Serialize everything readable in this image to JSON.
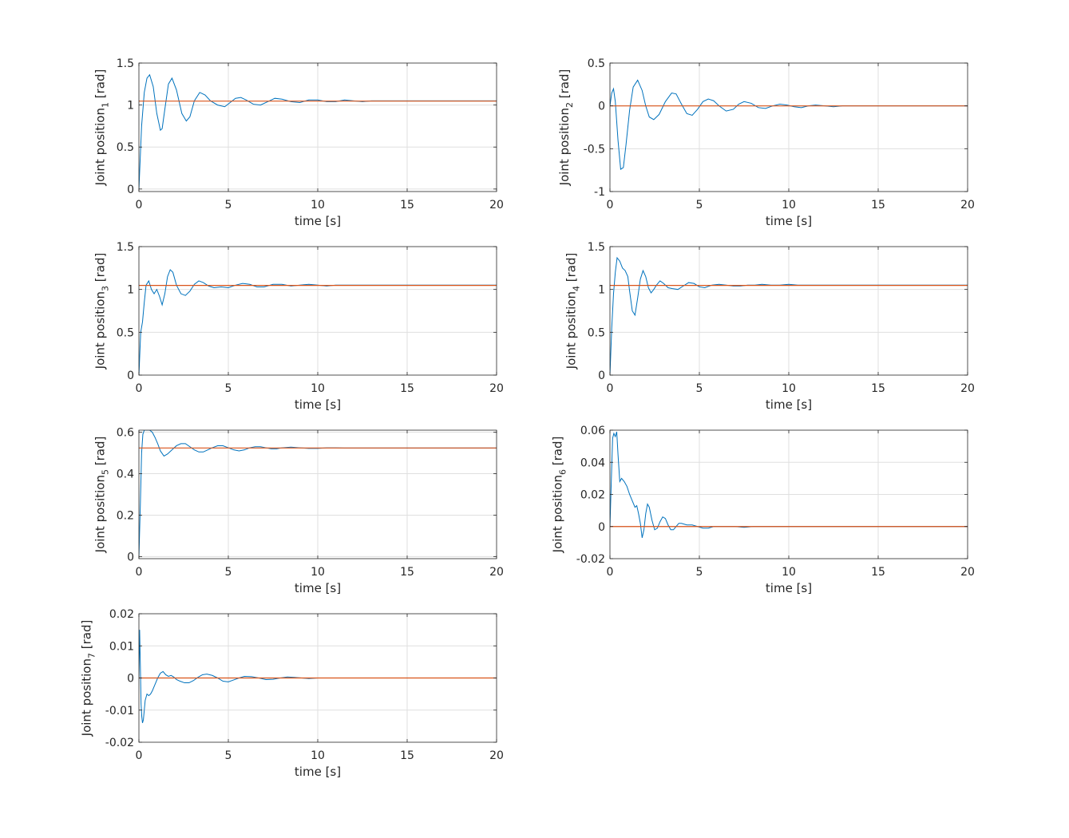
{
  "chart_data": [
    {
      "type": "line",
      "ylabel": "Joint position",
      "ylabel_sub": "1",
      "ylabel_unit": " [rad]",
      "xlabel": "time [s]",
      "xlim": [
        0,
        20
      ],
      "ylim": [
        -0.03,
        1.5
      ],
      "xticks": [
        0,
        5,
        10,
        15,
        20
      ],
      "yticks": [
        0,
        0.5,
        1,
        1.5
      ],
      "ytick_labels": [
        "0",
        "0.5",
        "1",
        "1.5"
      ],
      "grid": true,
      "reference": 1.047,
      "series": [
        {
          "color": "#0072BD",
          "x": [
            0,
            0.07,
            0.15,
            0.3,
            0.45,
            0.6,
            0.8,
            1.0,
            1.2,
            1.3,
            1.45,
            1.65,
            1.85,
            2.1,
            2.4,
            2.65,
            2.85,
            3.1,
            3.4,
            3.7,
            4.0,
            4.4,
            4.8,
            5.1,
            5.4,
            5.7,
            6.0,
            6.4,
            6.8,
            7.2,
            7.6,
            8.0,
            8.5,
            9.0,
            9.5,
            10.0,
            10.5,
            11.0,
            11.5,
            12.0,
            12.5,
            13.0,
            13.5,
            14.0,
            15.0,
            16.0,
            17.0,
            18.0,
            19.0,
            20.0
          ],
          "y": [
            0.0,
            0.35,
            0.75,
            1.15,
            1.32,
            1.36,
            1.22,
            0.9,
            0.7,
            0.72,
            0.95,
            1.25,
            1.32,
            1.18,
            0.9,
            0.81,
            0.86,
            1.05,
            1.15,
            1.12,
            1.05,
            1.0,
            0.98,
            1.03,
            1.08,
            1.09,
            1.06,
            1.01,
            1.0,
            1.04,
            1.08,
            1.07,
            1.04,
            1.03,
            1.06,
            1.06,
            1.04,
            1.04,
            1.06,
            1.05,
            1.04,
            1.05,
            1.05,
            1.05,
            1.05,
            1.05,
            1.05,
            1.05,
            1.05,
            1.05
          ]
        },
        {
          "color": "#D95319",
          "x": [
            0,
            20
          ],
          "y": [
            1.047,
            1.047
          ]
        }
      ]
    },
    {
      "type": "line",
      "ylabel": "Joint position",
      "ylabel_sub": "2",
      "ylabel_unit": " [rad]",
      "xlabel": "time [s]",
      "xlim": [
        0,
        20
      ],
      "ylim": [
        -1,
        0.5
      ],
      "xticks": [
        0,
        5,
        10,
        15,
        20
      ],
      "yticks": [
        -1,
        -0.5,
        0,
        0.5
      ],
      "ytick_labels": [
        "-1",
        "-0.5",
        "0",
        "0.5"
      ],
      "grid": true,
      "reference": 0,
      "series": [
        {
          "color": "#0072BD",
          "x": [
            0,
            0.1,
            0.2,
            0.3,
            0.45,
            0.6,
            0.75,
            0.9,
            1.1,
            1.3,
            1.55,
            1.8,
            2.0,
            2.2,
            2.45,
            2.75,
            3.1,
            3.45,
            3.7,
            4.0,
            4.3,
            4.6,
            4.9,
            5.2,
            5.5,
            5.8,
            6.1,
            6.5,
            6.9,
            7.2,
            7.5,
            7.9,
            8.3,
            8.7,
            9.1,
            9.5,
            9.9,
            10.3,
            10.7,
            11.1,
            11.5,
            12.0,
            12.5,
            13.0,
            14.0,
            15.0,
            16.0,
            17.0,
            18.0,
            19.0,
            20.0
          ],
          "y": [
            0.0,
            0.15,
            0.2,
            0.05,
            -0.4,
            -0.74,
            -0.72,
            -0.45,
            -0.05,
            0.22,
            0.3,
            0.18,
            0.0,
            -0.13,
            -0.16,
            -0.1,
            0.05,
            0.15,
            0.14,
            0.02,
            -0.09,
            -0.11,
            -0.04,
            0.05,
            0.08,
            0.06,
            0.0,
            -0.06,
            -0.04,
            0.02,
            0.05,
            0.03,
            -0.02,
            -0.03,
            0.0,
            0.02,
            0.01,
            -0.01,
            -0.02,
            0.0,
            0.01,
            0.0,
            -0.01,
            0.0,
            0.0,
            0.0,
            0.0,
            0.0,
            0.0,
            0.0,
            0.0
          ]
        },
        {
          "color": "#D95319",
          "x": [
            0,
            20
          ],
          "y": [
            0,
            0
          ]
        }
      ]
    },
    {
      "type": "line",
      "ylabel": "Joint position",
      "ylabel_sub": "3",
      "ylabel_unit": " [rad]",
      "xlabel": "time [s]",
      "xlim": [
        0,
        20
      ],
      "ylim": [
        0,
        1.5
      ],
      "xticks": [
        0,
        5,
        10,
        15,
        20
      ],
      "yticks": [
        0,
        0.5,
        1,
        1.5
      ],
      "ytick_labels": [
        "0",
        "0.5",
        "1",
        "1.5"
      ],
      "grid": true,
      "reference": 1.047,
      "series": [
        {
          "color": "#0072BD",
          "x": [
            0,
            0.1,
            0.2,
            0.3,
            0.4,
            0.55,
            0.7,
            0.85,
            1.0,
            1.15,
            1.3,
            1.45,
            1.6,
            1.75,
            1.9,
            2.1,
            2.35,
            2.6,
            2.85,
            3.1,
            3.35,
            3.6,
            3.9,
            4.2,
            4.6,
            5.0,
            5.4,
            5.8,
            6.2,
            6.6,
            7.0,
            7.5,
            8.0,
            8.5,
            9.0,
            9.5,
            10.0,
            10.5,
            11.0,
            11.5,
            12.0,
            13.0,
            14.0,
            15.0,
            16.0,
            17.0,
            18.0,
            19.0,
            20.0
          ],
          "y": [
            0.0,
            0.5,
            0.62,
            0.85,
            1.05,
            1.1,
            1.0,
            0.95,
            1.0,
            0.92,
            0.82,
            0.95,
            1.15,
            1.23,
            1.2,
            1.05,
            0.95,
            0.93,
            0.98,
            1.06,
            1.1,
            1.08,
            1.04,
            1.02,
            1.03,
            1.02,
            1.05,
            1.07,
            1.06,
            1.03,
            1.03,
            1.06,
            1.06,
            1.04,
            1.05,
            1.06,
            1.05,
            1.04,
            1.05,
            1.05,
            1.05,
            1.05,
            1.05,
            1.05,
            1.05,
            1.05,
            1.05,
            1.05,
            1.05
          ]
        },
        {
          "color": "#D95319",
          "x": [
            0,
            20
          ],
          "y": [
            1.047,
            1.047
          ]
        }
      ]
    },
    {
      "type": "line",
      "ylabel": "Joint position",
      "ylabel_sub": "4",
      "ylabel_unit": " [rad]",
      "xlabel": "time [s]",
      "xlim": [
        0,
        20
      ],
      "ylim": [
        0,
        1.5
      ],
      "xticks": [
        0,
        5,
        10,
        15,
        20
      ],
      "yticks": [
        0,
        0.5,
        1,
        1.5
      ],
      "ytick_labels": [
        "0",
        "0.5",
        "1",
        "1.5"
      ],
      "grid": true,
      "reference": 1.047,
      "series": [
        {
          "color": "#0072BD",
          "x": [
            0,
            0.1,
            0.2,
            0.3,
            0.4,
            0.55,
            0.7,
            0.85,
            1.0,
            1.1,
            1.25,
            1.4,
            1.55,
            1.7,
            1.85,
            2.0,
            2.15,
            2.3,
            2.45,
            2.6,
            2.8,
            3.0,
            3.25,
            3.5,
            3.8,
            4.1,
            4.4,
            4.7,
            5.0,
            5.3,
            5.7,
            6.1,
            6.5,
            6.9,
            7.3,
            7.7,
            8.1,
            8.5,
            9.0,
            9.5,
            10.0,
            10.5,
            11.0,
            12.0,
            13.0,
            14.0,
            15.0,
            16.0,
            17.0,
            18.0,
            19.0,
            20.0
          ],
          "y": [
            0.0,
            0.55,
            0.95,
            1.2,
            1.37,
            1.33,
            1.25,
            1.22,
            1.15,
            0.98,
            0.75,
            0.7,
            0.9,
            1.12,
            1.22,
            1.15,
            1.02,
            0.96,
            1.0,
            1.05,
            1.1,
            1.07,
            1.02,
            1.01,
            1.0,
            1.04,
            1.08,
            1.07,
            1.03,
            1.02,
            1.05,
            1.06,
            1.05,
            1.04,
            1.04,
            1.05,
            1.05,
            1.06,
            1.05,
            1.05,
            1.06,
            1.05,
            1.05,
            1.05,
            1.05,
            1.05,
            1.05,
            1.05,
            1.05,
            1.05,
            1.05,
            1.05
          ]
        },
        {
          "color": "#D95319",
          "x": [
            0,
            20
          ],
          "y": [
            1.047,
            1.047
          ]
        }
      ]
    },
    {
      "type": "line",
      "ylabel": "Joint position",
      "ylabel_sub": "5",
      "ylabel_unit": " [rad]",
      "xlabel": "time [s]",
      "xlim": [
        0,
        20
      ],
      "ylim": [
        -0.01,
        0.61
      ],
      "xticks": [
        0,
        5,
        10,
        15,
        20
      ],
      "yticks": [
        0,
        0.2,
        0.4,
        0.6
      ],
      "ytick_labels": [
        "0",
        "0.2",
        "0.4",
        "0.6"
      ],
      "grid": true,
      "reference": 0.524,
      "series": [
        {
          "color": "#0072BD",
          "x": [
            0,
            0.08,
            0.15,
            0.22,
            0.3,
            0.45,
            0.6,
            0.75,
            0.9,
            1.05,
            1.2,
            1.4,
            1.6,
            1.85,
            2.1,
            2.35,
            2.6,
            2.85,
            3.1,
            3.35,
            3.6,
            3.85,
            4.1,
            4.4,
            4.7,
            5.0,
            5.3,
            5.6,
            5.9,
            6.2,
            6.5,
            6.8,
            7.1,
            7.4,
            7.7,
            8.0,
            8.5,
            9.0,
            9.5,
            10.0,
            10.5,
            11.0,
            11.5,
            12.0,
            13.0,
            14.0,
            15.0,
            16.0,
            17.0,
            18.0,
            19.0,
            20.0
          ],
          "y": [
            0.0,
            0.25,
            0.5,
            0.59,
            0.61,
            0.61,
            0.61,
            0.6,
            0.575,
            0.545,
            0.51,
            0.485,
            0.495,
            0.515,
            0.535,
            0.545,
            0.545,
            0.53,
            0.515,
            0.505,
            0.505,
            0.515,
            0.525,
            0.535,
            0.535,
            0.525,
            0.515,
            0.51,
            0.515,
            0.525,
            0.53,
            0.53,
            0.525,
            0.52,
            0.52,
            0.525,
            0.528,
            0.525,
            0.522,
            0.522,
            0.525,
            0.525,
            0.524,
            0.524,
            0.524,
            0.524,
            0.524,
            0.524,
            0.524,
            0.524,
            0.524,
            0.524
          ]
        },
        {
          "color": "#D95319",
          "x": [
            0,
            20
          ],
          "y": [
            0.524,
            0.524
          ]
        }
      ]
    },
    {
      "type": "line",
      "ylabel": "Joint position",
      "ylabel_sub": "6",
      "ylabel_unit": " [rad]",
      "xlabel": "time [s]",
      "xlim": [
        0,
        20
      ],
      "ylim": [
        -0.02,
        0.06
      ],
      "xticks": [
        0,
        5,
        10,
        15,
        20
      ],
      "yticks": [
        -0.02,
        0,
        0.02,
        0.04,
        0.06
      ],
      "ytick_labels": [
        "-0.02",
        "0",
        "0.02",
        "0.04",
        "0.06"
      ],
      "grid": true,
      "reference": 0,
      "series": [
        {
          "color": "#0072BD",
          "x": [
            0,
            0.08,
            0.15,
            0.22,
            0.3,
            0.38,
            0.45,
            0.55,
            0.65,
            0.8,
            0.95,
            1.1,
            1.25,
            1.4,
            1.5,
            1.6,
            1.7,
            1.8,
            1.9,
            2.0,
            2.1,
            2.2,
            2.35,
            2.5,
            2.65,
            2.8,
            2.95,
            3.1,
            3.25,
            3.4,
            3.55,
            3.7,
            3.85,
            4.0,
            4.3,
            4.6,
            4.9,
            5.2,
            5.5,
            5.8,
            6.2,
            6.6,
            7.0,
            7.5,
            8.0,
            8.5,
            9.0,
            10.0,
            11.0,
            12.0,
            13.0,
            14.0,
            15.0,
            16.0,
            17.0,
            18.0,
            19.0,
            20.0
          ],
          "y": [
            0.0,
            0.03,
            0.055,
            0.058,
            0.056,
            0.059,
            0.045,
            0.028,
            0.03,
            0.028,
            0.025,
            0.02,
            0.016,
            0.012,
            0.013,
            0.008,
            0.002,
            -0.007,
            -0.002,
            0.008,
            0.014,
            0.012,
            0.004,
            -0.002,
            -0.001,
            0.003,
            0.006,
            0.005,
            0.001,
            -0.002,
            -0.002,
            0.0,
            0.002,
            0.002,
            0.001,
            0.001,
            0.0,
            -0.001,
            -0.001,
            0.0,
            0.0,
            0.0,
            0.0,
            -0.0005,
            0.0,
            0.0,
            0.0,
            0.0,
            0.0,
            0.0,
            0.0,
            0.0,
            0.0,
            0.0,
            0.0,
            0.0,
            0.0,
            0.0
          ]
        },
        {
          "color": "#D95319",
          "x": [
            0,
            20
          ],
          "y": [
            0,
            0
          ]
        }
      ]
    },
    {
      "type": "line",
      "ylabel": "Joint position",
      "ylabel_sub": "7",
      "ylabel_unit": " [rad]",
      "xlabel": "time [s]",
      "xlim": [
        0,
        20
      ],
      "ylim": [
        -0.02,
        0.02
      ],
      "xticks": [
        0,
        5,
        10,
        15,
        20
      ],
      "yticks": [
        -0.02,
        -0.01,
        0,
        0.01,
        0.02
      ],
      "ytick_labels": [
        "-0.02",
        "-0.01",
        "0",
        "0.01",
        "0.02"
      ],
      "grid": true,
      "reference": 0,
      "series": [
        {
          "color": "#0072BD",
          "x": [
            0,
            0.04,
            0.08,
            0.12,
            0.16,
            0.2,
            0.25,
            0.3,
            0.35,
            0.45,
            0.55,
            0.65,
            0.75,
            0.9,
            1.05,
            1.2,
            1.35,
            1.5,
            1.65,
            1.8,
            1.95,
            2.1,
            2.3,
            2.55,
            2.8,
            3.05,
            3.3,
            3.55,
            3.8,
            4.1,
            4.4,
            4.7,
            5.0,
            5.3,
            5.6,
            5.9,
            6.3,
            6.7,
            7.1,
            7.5,
            7.9,
            8.3,
            8.7,
            9.1,
            9.5,
            10.0,
            10.5,
            11.0,
            12.0,
            13.0,
            14.0,
            15.0,
            16.0,
            17.0,
            18.0,
            19.0,
            20.0
          ],
          "y": [
            0.0,
            0.015,
            0.004,
            -0.008,
            -0.012,
            -0.014,
            -0.013,
            -0.01,
            -0.007,
            -0.005,
            -0.0055,
            -0.005,
            -0.004,
            -0.002,
            0.0,
            0.0015,
            0.002,
            0.001,
            0.0005,
            0.0008,
            0.0003,
            -0.0005,
            -0.001,
            -0.0015,
            -0.0015,
            -0.0008,
            0.0002,
            0.001,
            0.0012,
            0.0008,
            0.0,
            -0.001,
            -0.0012,
            -0.0006,
            0.0,
            0.0005,
            0.0004,
            0.0,
            -0.0005,
            -0.0004,
            0.0,
            0.0003,
            0.0002,
            0.0,
            -0.0002,
            0.0,
            0.0,
            0.0,
            0.0,
            0.0,
            0.0,
            0.0,
            0.0,
            0.0,
            0.0,
            0.0,
            0.0
          ]
        },
        {
          "color": "#D95319",
          "x": [
            0,
            20
          ],
          "y": [
            0,
            0
          ]
        }
      ]
    }
  ]
}
